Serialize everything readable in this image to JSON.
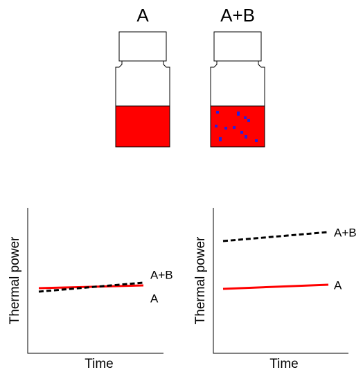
{
  "vials": [
    {
      "label": "A"
    },
    {
      "label": "A+B"
    }
  ],
  "plots": [
    {
      "y_label": "Thermal power",
      "x_label": "Time",
      "labels": [
        "A+B",
        "A"
      ]
    },
    {
      "y_label": "Thermal power",
      "x_label": "Time",
      "labels": [
        "A+B",
        "A"
      ]
    }
  ]
}
